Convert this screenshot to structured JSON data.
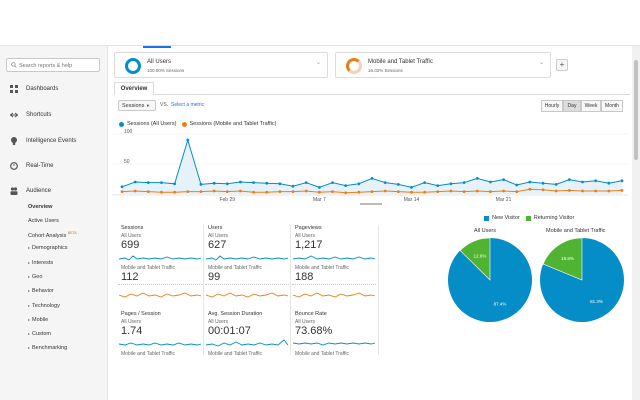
{
  "sidebar": {
    "search_placeholder": "Search reports & help",
    "items": [
      {
        "label": "Dashboards",
        "icon": "grid-icon"
      },
      {
        "label": "Shortcuts",
        "icon": "arrow-icon"
      },
      {
        "label": "Intelligence Events",
        "icon": "bulb-icon"
      },
      {
        "label": "Real-Time",
        "icon": "clock-icon"
      },
      {
        "label": "Audience",
        "icon": "people-icon"
      }
    ],
    "audience_sub": {
      "overview": "Overview",
      "active_users": "Active Users",
      "cohort": "Cohort Analysis",
      "beta": "BETA",
      "demographics": "Demographics",
      "interests": "Interests",
      "geo": "Geo",
      "behavior": "Behavior",
      "technology": "Technology",
      "mobile": "Mobile",
      "custom": "Custom",
      "benchmarking": "Benchmarking"
    }
  },
  "segments": [
    {
      "name": "All Users",
      "pct": "100.00% Sessions",
      "color": "#058dc7"
    },
    {
      "name": "Mobile and Tablet Traffic",
      "pct": "16.02% Sessions",
      "color": "#ed7e17"
    }
  ],
  "add_segment_label": "+",
  "tab": {
    "overview": "Overview"
  },
  "controls": {
    "metric": "Sessions",
    "vs": "VS.",
    "select_metric": "Select a metric",
    "periods": [
      "Hourly",
      "Day",
      "Week",
      "Month"
    ],
    "active_period": "Day"
  },
  "legend": {
    "series1": "Sessions (All Users)",
    "series2": "Sessions (Mobile and Tablet Traffic)"
  },
  "colors": {
    "blue": "#058dc7",
    "orange": "#ed7e17",
    "green": "#50b432"
  },
  "chart_data": {
    "type": "line",
    "yticks": [
      "100",
      "50"
    ],
    "ylim": [
      0,
      100
    ],
    "xticks": [
      "Feb 29",
      "Mar 7",
      "Mar 14",
      "Mar 21"
    ],
    "series": [
      {
        "name": "Sessions (All Users)",
        "values": [
          12,
          20,
          19,
          19,
          17,
          90,
          16,
          18,
          17,
          20,
          19,
          18,
          17,
          13,
          19,
          11,
          19,
          14,
          17,
          26,
          19,
          16,
          11,
          19,
          14,
          17,
          19,
          26,
          20,
          24,
          15,
          20,
          18,
          16,
          24,
          20,
          22,
          18,
          22
        ]
      },
      {
        "name": "Sessions (Mobile and Tablet Traffic)",
        "values": [
          4,
          5,
          4,
          3,
          3,
          4,
          4,
          5,
          4,
          5,
          3,
          3,
          4,
          4,
          5,
          3,
          4,
          2,
          3,
          4,
          5,
          4,
          3,
          3,
          4,
          5,
          4,
          5,
          4,
          5,
          4,
          8,
          7,
          5,
          6,
          5,
          5,
          5,
          6
        ]
      }
    ]
  },
  "metrics": {
    "seg_all": "All Users",
    "seg_mobile": "Mobile and Tablet Traffic",
    "sessions": {
      "name": "Sessions",
      "all": "699",
      "mobile": "112"
    },
    "users": {
      "name": "Users",
      "all": "627",
      "mobile": "99"
    },
    "pageviews": {
      "name": "Pageviews",
      "all": "1,217",
      "mobile": "188"
    },
    "pages_session": {
      "name": "Pages / Session",
      "all": "1.74"
    },
    "avg_duration": {
      "name": "Avg. Session Duration",
      "all": "00:01:07"
    },
    "bounce": {
      "name": "Bounce Rate",
      "all": "73.68%"
    }
  },
  "pies": {
    "legend_new": "New Visitor",
    "legend_returning": "Returning Visitor",
    "all_title": "All Users",
    "mobile_title": "Mobile and Tablet Traffic",
    "all": {
      "new": 87.4,
      "returning": 12.6,
      "new_label": "87.4%",
      "ret_label": "12.6%"
    },
    "mobile": {
      "new": 81.3,
      "returning": 18.8,
      "new_label": "81.3%",
      "ret_label": "18.8%"
    }
  }
}
